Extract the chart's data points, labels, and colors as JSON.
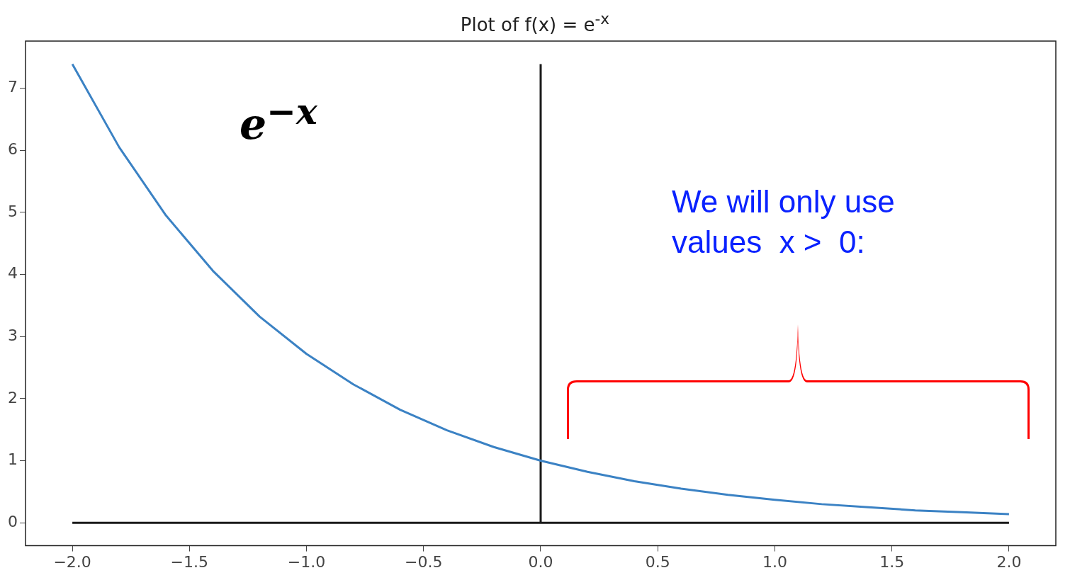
{
  "chart_data": {
    "type": "line",
    "title": "Plot of f(x) = e$^{-x}$",
    "xlim": [
      -2.2,
      2.2
    ],
    "ylim": [
      -0.37,
      7.76
    ],
    "xticks": [
      {
        "value": -2,
        "label": "−2.0"
      },
      {
        "value": -1.5,
        "label": "−1.5"
      },
      {
        "value": -1,
        "label": "−1.0"
      },
      {
        "value": -0.5,
        "label": "−0.5"
      },
      {
        "value": 0,
        "label": "0.0"
      },
      {
        "value": 0.5,
        "label": "0.5"
      },
      {
        "value": 1,
        "label": "1.0"
      },
      {
        "value": 1.5,
        "label": "1.5"
      },
      {
        "value": 2,
        "label": "2.0"
      }
    ],
    "yticks": [
      0,
      1,
      2,
      3,
      4,
      5,
      6,
      7
    ],
    "grid": false,
    "legend": false,
    "marker": "none",
    "line_style": "solid",
    "series": [
      {
        "color": "#3b82c4",
        "x": [
          -2,
          -1.8,
          -1.6,
          -1.4,
          -1.2,
          -1,
          -0.8,
          -0.6,
          -0.4,
          -0.2,
          0,
          0.2,
          0.4,
          0.6,
          0.8,
          1,
          1.2,
          1.4,
          1.6,
          1.8,
          2
        ],
        "values": [
          7.39,
          6.05,
          4.95,
          4.06,
          3.32,
          2.72,
          2.23,
          1.82,
          1.49,
          1.22,
          1,
          0.82,
          0.67,
          0.55,
          0.45,
          0.37,
          0.3,
          0.25,
          0.2,
          0.17,
          0.14
        ]
      },
      {
        "color": "#1a1a1a",
        "x": [
          -2,
          2
        ],
        "values": [
          0,
          0
        ]
      },
      {
        "color": "#1a1a1a",
        "x": [
          0,
          0
        ],
        "values": [
          0,
          7.39
        ]
      }
    ],
    "annotations": [
      "e$^{−x}$",
      "We will only use\nvalues  x >  0:"
    ]
  }
}
